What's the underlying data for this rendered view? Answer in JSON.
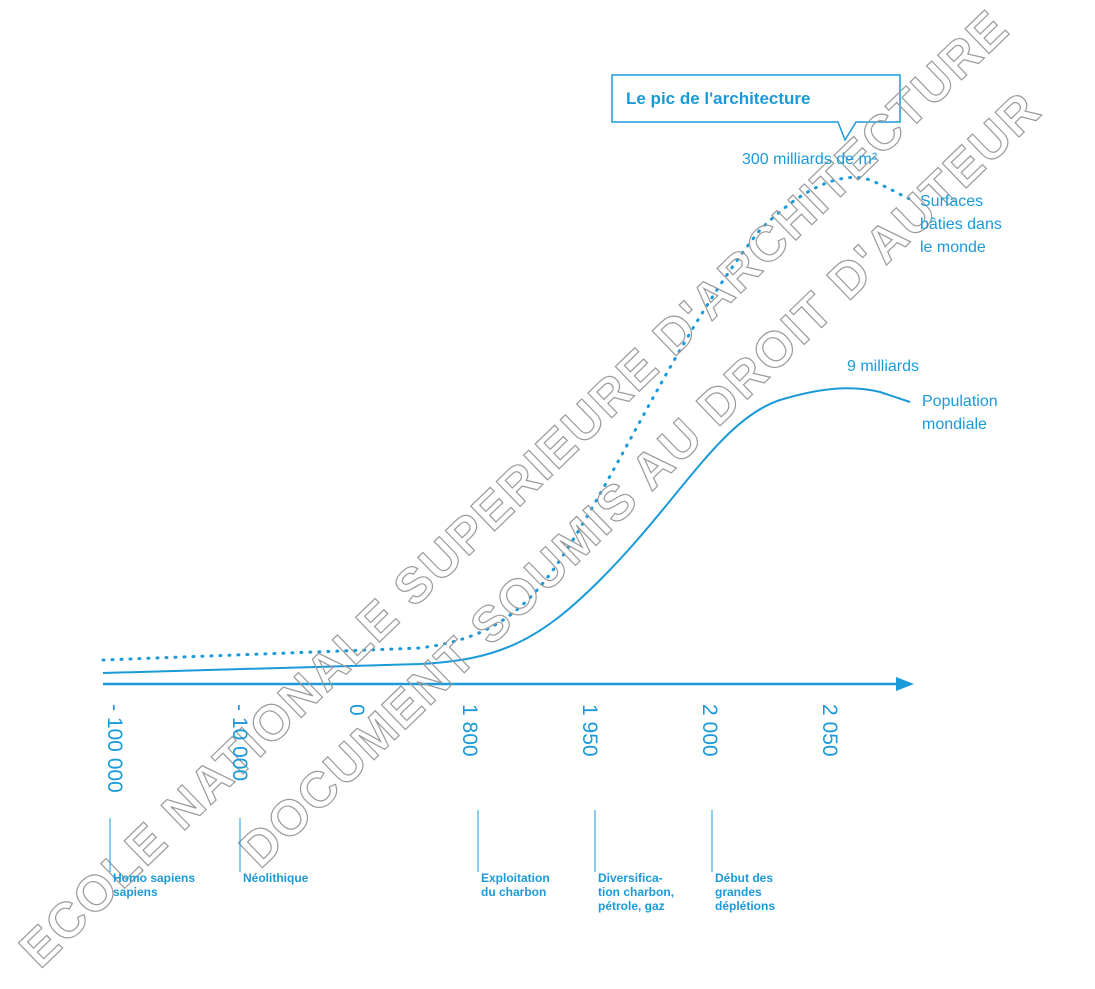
{
  "callout": "Le pic de l'architecture",
  "surfaces": {
    "peak": "300 milliards de m²",
    "label": [
      "Surfaces",
      "bâties dans",
      "le monde"
    ]
  },
  "population": {
    "peak": "9 milliards",
    "label": [
      "Population",
      "mondiale"
    ]
  },
  "axis_ticks": [
    "- 100 000",
    "- 10 000",
    "0",
    "1 800",
    "1 950",
    "2 000",
    "2 050"
  ],
  "events": [
    [
      "Homo sapiens",
      "sapiens"
    ],
    [
      "Néolithique"
    ],
    [
      "Exploitation",
      "du charbon"
    ],
    [
      "Diversifica-",
      "tion charbon,",
      "pétrole, gaz"
    ],
    [
      "Début des",
      "grandes",
      "déplétions"
    ]
  ],
  "watermark": [
    "ECOLE NATIONALE SUPERIEURE D'ARCHITECTURE",
    "DOCUMENT SOUMIS AU DROIT D'AUTEUR"
  ]
}
